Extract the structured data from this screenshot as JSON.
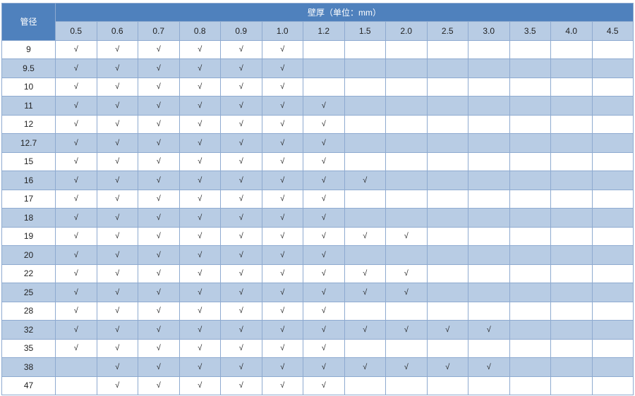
{
  "table": {
    "pipe_header": "管径",
    "wall_header": "壁厚（单位：mm）",
    "thickness_columns": [
      "0.5",
      "0.6",
      "0.7",
      "0.8",
      "0.9",
      "1.0",
      "1.2",
      "1.5",
      "2.0",
      "2.5",
      "3.0",
      "3.5",
      "4.0",
      "4.5"
    ],
    "colors": {
      "header": "#4f81bd",
      "stripe": "#b8cce4",
      "border": "#8eaad0"
    },
    "rows": [
      {
        "d": "9",
        "cells": [
          "√",
          "√",
          "√",
          "√",
          "√",
          "√",
          "",
          "",
          "",
          "",
          "",
          "",
          "",
          ""
        ]
      },
      {
        "d": "9.5",
        "cells": [
          "√",
          "√",
          "√",
          "√",
          "√",
          "√",
          "",
          "",
          "",
          "",
          "",
          "",
          "",
          ""
        ]
      },
      {
        "d": "10",
        "cells": [
          "√",
          "√",
          "√",
          "√",
          "√",
          "√",
          "",
          "",
          "",
          "",
          "",
          "",
          "",
          ""
        ]
      },
      {
        "d": "11",
        "cells": [
          "√",
          "√",
          "√",
          "√",
          "√",
          "√",
          "√",
          "",
          "",
          "",
          "",
          "",
          "",
          ""
        ]
      },
      {
        "d": "12",
        "cells": [
          "√",
          "√",
          "√",
          "√",
          "√",
          "√",
          "√",
          "",
          "",
          "",
          "",
          "",
          "",
          ""
        ]
      },
      {
        "d": "12.7",
        "cells": [
          "√",
          "√",
          "√",
          "√",
          "√",
          "√",
          "√",
          "",
          "",
          "",
          "",
          "",
          "",
          ""
        ]
      },
      {
        "d": "15",
        "cells": [
          "√",
          "√",
          "√",
          "√",
          "√",
          "√",
          "√",
          "",
          "",
          "",
          "",
          "",
          "",
          ""
        ]
      },
      {
        "d": "16",
        "cells": [
          "√",
          "√",
          "√",
          "√",
          "√",
          "√",
          "√",
          "√",
          "",
          "",
          "",
          "",
          "",
          ""
        ]
      },
      {
        "d": "17",
        "cells": [
          "√",
          "√",
          "√",
          "√",
          "√",
          "√",
          "√",
          "",
          "",
          "",
          "",
          "",
          "",
          ""
        ]
      },
      {
        "d": "18",
        "cells": [
          "√",
          "√",
          "√",
          "√",
          "√",
          "√",
          "√",
          "",
          "",
          "",
          "",
          "",
          "",
          ""
        ]
      },
      {
        "d": "19",
        "cells": [
          "√",
          "√",
          "√",
          "√",
          "√",
          "√",
          "√",
          "√",
          "√",
          "",
          "",
          "",
          "",
          ""
        ]
      },
      {
        "d": "20",
        "cells": [
          "√",
          "√",
          "√",
          "√",
          "√",
          "√",
          "√",
          "",
          "",
          "",
          "",
          "",
          "",
          ""
        ]
      },
      {
        "d": "22",
        "cells": [
          "√",
          "√",
          "√",
          "√",
          "√",
          "√",
          "√",
          "√",
          "√",
          "",
          "",
          "",
          "",
          ""
        ]
      },
      {
        "d": "25",
        "cells": [
          "√",
          "√",
          "√",
          "√",
          "√",
          "√",
          "√",
          "√",
          "√",
          "",
          "",
          "",
          "",
          ""
        ]
      },
      {
        "d": "28",
        "cells": [
          "√",
          "√",
          "√",
          "√",
          "√",
          "√",
          "√",
          "",
          "",
          "",
          "",
          "",
          "",
          ""
        ]
      },
      {
        "d": "32",
        "cells": [
          "√",
          "√",
          "√",
          "√",
          "√",
          "√",
          "√",
          "√",
          "√",
          "√",
          "√",
          "",
          "",
          ""
        ]
      },
      {
        "d": "35",
        "cells": [
          "√",
          "√",
          "√",
          "√",
          "√",
          "√",
          "√",
          "",
          "",
          "",
          "",
          "",
          "",
          ""
        ]
      },
      {
        "d": "38",
        "cells": [
          "",
          "√",
          "√",
          "√",
          "√",
          "√",
          "√",
          "√",
          "√",
          "√",
          "√",
          "",
          "",
          ""
        ]
      },
      {
        "d": "47",
        "cells": [
          "",
          "√",
          "√",
          "√",
          "√",
          "√",
          "√",
          "",
          "",
          "",
          "",
          "",
          "",
          ""
        ]
      }
    ]
  }
}
